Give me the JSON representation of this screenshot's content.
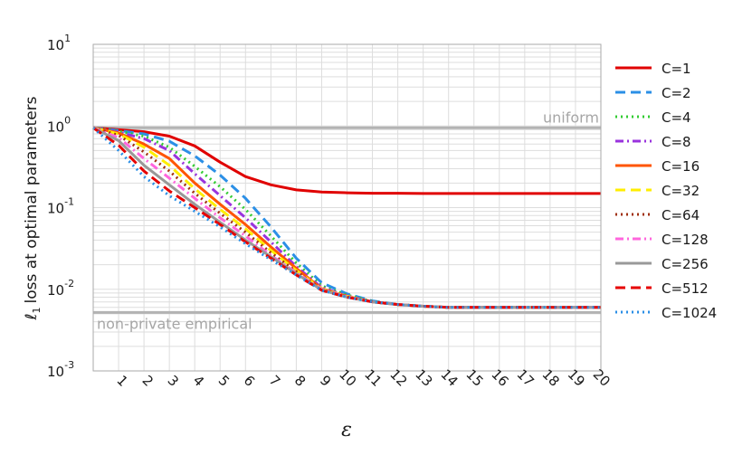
{
  "chart_data": {
    "type": "line",
    "xlabel": "ε",
    "ylabel_prefix": "ℓ",
    "ylabel_subscript": "1",
    "ylabel": "loss at optimal parameters",
    "yscale": "log",
    "ylim": [
      0.001,
      10
    ],
    "xlim": [
      0,
      20
    ],
    "grid": true,
    "legend_position": "right",
    "x_tick_labels": [
      "1",
      "2",
      "3",
      "4",
      "5",
      "6",
      "7",
      "8",
      "9",
      "10",
      "11",
      "12",
      "13",
      "14",
      "15",
      "16",
      "17",
      "18",
      "19",
      "20"
    ],
    "y_ticks": [
      {
        "value": 10,
        "base": "10",
        "exp": "1"
      },
      {
        "value": 1,
        "base": "10",
        "exp": "0"
      },
      {
        "value": 0.1,
        "base": "10",
        "exp": "-1"
      },
      {
        "value": 0.01,
        "base": "10",
        "exp": "-2"
      },
      {
        "value": 0.001,
        "base": "10",
        "exp": "-3"
      }
    ],
    "reference_lines": [
      {
        "label": "uniform",
        "value": 0.95,
        "color": "#b3b3b3"
      },
      {
        "label": "non-private empirical",
        "value": 0.0052,
        "color": "#b3b3b3"
      }
    ],
    "x": [
      0,
      1,
      2,
      3,
      4,
      5,
      6,
      7,
      8,
      9,
      10,
      11,
      12,
      13,
      14,
      15,
      16,
      17,
      18,
      19,
      20
    ],
    "series": [
      {
        "name": "C=1",
        "color": "#e00000",
        "dash": "solid",
        "values": [
          0.95,
          0.9,
          0.85,
          0.75,
          0.57,
          0.36,
          0.24,
          0.19,
          0.165,
          0.155,
          0.152,
          0.15,
          0.15,
          0.149,
          0.149,
          0.149,
          0.149,
          0.149,
          0.149,
          0.149,
          0.149
        ]
      },
      {
        "name": "C=2",
        "color": "#2b8fe6",
        "dash": "dashed",
        "values": [
          0.95,
          0.88,
          0.8,
          0.65,
          0.43,
          0.25,
          0.13,
          0.058,
          0.024,
          0.012,
          0.0088,
          0.0072,
          0.0065,
          0.0062,
          0.006,
          0.006,
          0.006,
          0.006,
          0.006,
          0.006,
          0.006
        ]
      },
      {
        "name": "C=4",
        "color": "#33cc33",
        "dash": "dotted",
        "values": [
          0.95,
          0.86,
          0.75,
          0.55,
          0.32,
          0.18,
          0.095,
          0.045,
          0.021,
          0.011,
          0.0085,
          0.0071,
          0.0065,
          0.0062,
          0.006,
          0.006,
          0.006,
          0.006,
          0.006,
          0.006,
          0.006
        ]
      },
      {
        "name": "C=8",
        "color": "#9933dd",
        "dash": "dashdot",
        "values": [
          0.95,
          0.84,
          0.7,
          0.5,
          0.26,
          0.14,
          0.075,
          0.038,
          0.019,
          0.0105,
          0.0083,
          0.007,
          0.0065,
          0.0062,
          0.006,
          0.006,
          0.006,
          0.006,
          0.006,
          0.006,
          0.006
        ]
      },
      {
        "name": "C=16",
        "color": "#ff5500",
        "dash": "solid",
        "values": [
          0.95,
          0.82,
          0.6,
          0.4,
          0.2,
          0.11,
          0.062,
          0.033,
          0.018,
          0.0102,
          0.0082,
          0.007,
          0.0065,
          0.0062,
          0.006,
          0.006,
          0.006,
          0.006,
          0.006,
          0.006,
          0.006
        ]
      },
      {
        "name": "C=32",
        "color": "#ffee00",
        "dash": "dashed",
        "values": [
          0.95,
          0.8,
          0.55,
          0.33,
          0.17,
          0.095,
          0.055,
          0.03,
          0.017,
          0.0101,
          0.0082,
          0.007,
          0.0065,
          0.0062,
          0.006,
          0.006,
          0.006,
          0.006,
          0.006,
          0.006,
          0.006
        ]
      },
      {
        "name": "C=64",
        "color": "#a03010",
        "dash": "dotted",
        "values": [
          0.95,
          0.77,
          0.48,
          0.28,
          0.15,
          0.085,
          0.05,
          0.028,
          0.0165,
          0.01,
          0.0081,
          0.007,
          0.0065,
          0.0062,
          0.006,
          0.006,
          0.006,
          0.006,
          0.006,
          0.006,
          0.006
        ]
      },
      {
        "name": "C=128",
        "color": "#ff66dd",
        "dash": "dashdot",
        "values": [
          0.95,
          0.72,
          0.4,
          0.23,
          0.13,
          0.075,
          0.045,
          0.026,
          0.016,
          0.01,
          0.0081,
          0.007,
          0.0065,
          0.0062,
          0.006,
          0.006,
          0.006,
          0.006,
          0.006,
          0.006,
          0.006
        ]
      },
      {
        "name": "C=256",
        "color": "#999999",
        "dash": "solid",
        "values": [
          0.95,
          0.66,
          0.33,
          0.19,
          0.11,
          0.066,
          0.04,
          0.025,
          0.0155,
          0.0098,
          0.008,
          0.007,
          0.0065,
          0.0062,
          0.006,
          0.006,
          0.006,
          0.006,
          0.006,
          0.006,
          0.006
        ]
      },
      {
        "name": "C=512",
        "color": "#e60000",
        "dash": "dashed",
        "values": [
          0.95,
          0.58,
          0.28,
          0.16,
          0.1,
          0.062,
          0.038,
          0.024,
          0.015,
          0.0097,
          0.008,
          0.007,
          0.0065,
          0.0062,
          0.006,
          0.006,
          0.006,
          0.006,
          0.006,
          0.006,
          0.006
        ]
      },
      {
        "name": "C=1024",
        "color": "#2b8fe6",
        "dash": "dotted",
        "values": [
          0.95,
          0.5,
          0.24,
          0.14,
          0.09,
          0.058,
          0.036,
          0.023,
          0.015,
          0.0097,
          0.008,
          0.007,
          0.0065,
          0.0062,
          0.006,
          0.006,
          0.006,
          0.006,
          0.006,
          0.006,
          0.006
        ]
      }
    ]
  }
}
